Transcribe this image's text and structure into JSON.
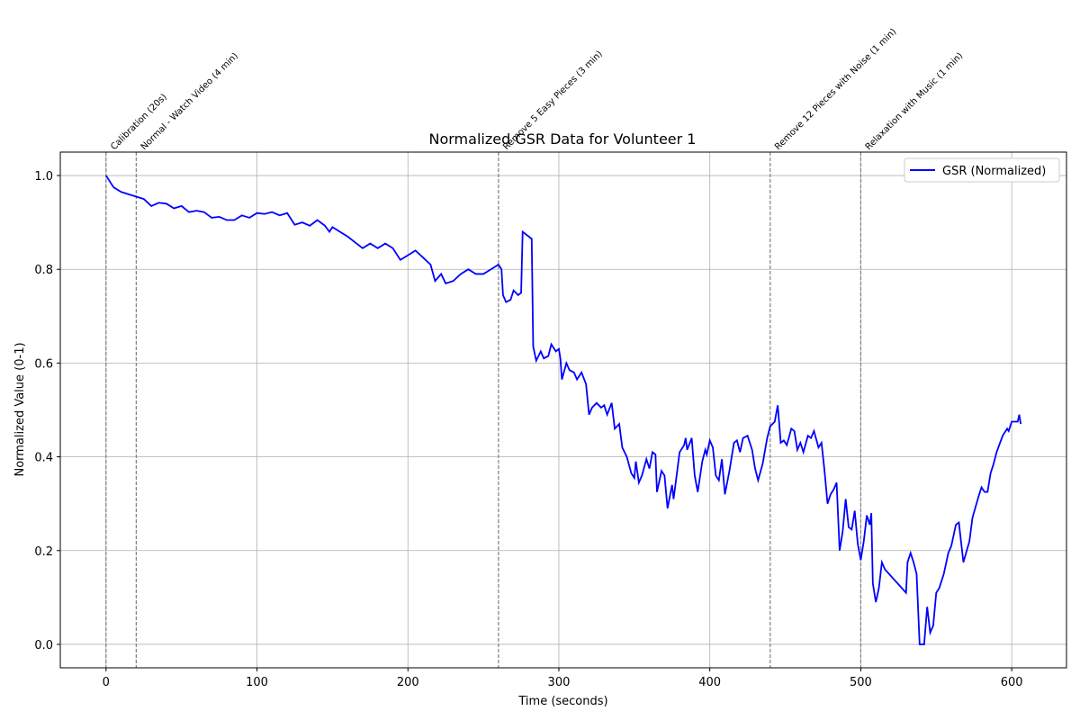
{
  "chart_data": {
    "type": "line",
    "title": "Normalized GSR Data for Volunteer 1",
    "xlabel": "Time (seconds)",
    "ylabel": "Normalized Value (0-1)",
    "xlim": [
      -30.3,
      636.3
    ],
    "ylim": [
      -0.05,
      1.05
    ],
    "xticks": [
      0,
      100,
      200,
      300,
      400,
      500,
      600
    ],
    "yticks": [
      {
        "value": 0,
        "label": "0.0"
      },
      0.2,
      0.4,
      0.6,
      0.8,
      {
        "value": 1,
        "label": "1.0"
      }
    ],
    "grid": true,
    "legend": "upper right",
    "annotations": [
      {
        "x": 0,
        "text": "Calibration (20s)"
      },
      {
        "x": 20,
        "text": "Normal - Watch Video (4 min)"
      },
      {
        "x": 260,
        "text": "Remove 5 Easy Pieces (3 min)"
      },
      {
        "x": 440,
        "text": "Remove 12 Pieces with Noise (1 min)"
      },
      {
        "x": 500,
        "text": "Relaxation with Music (1 min)"
      }
    ],
    "x": [
      0,
      5,
      10,
      15,
      20,
      25,
      30,
      35,
      40,
      45,
      50,
      55,
      60,
      65,
      70,
      75,
      80,
      85,
      90,
      95,
      100,
      105,
      110,
      115,
      120,
      125,
      130,
      135,
      140,
      145,
      148,
      150,
      160,
      170,
      175,
      180,
      185,
      190,
      195,
      200,
      205,
      210,
      215,
      218,
      222,
      225,
      230,
      235,
      240,
      245,
      250,
      255,
      260,
      262,
      263,
      265,
      268,
      270,
      273,
      275,
      276,
      280,
      282,
      283,
      285,
      288,
      290,
      293,
      295,
      298,
      300,
      301,
      302,
      305,
      307,
      310,
      312,
      315,
      318,
      320,
      322,
      325,
      328,
      330,
      332,
      335,
      337,
      340,
      342,
      345,
      348,
      350,
      351,
      353,
      355,
      358,
      360,
      362,
      364,
      365,
      368,
      370,
      372,
      375,
      376,
      380,
      383,
      384,
      385,
      388,
      390,
      392,
      395,
      397,
      398,
      400,
      402,
      404,
      406,
      408,
      410,
      413,
      416,
      418,
      420,
      422,
      425,
      428,
      430,
      432,
      435,
      438,
      440,
      443,
      445,
      447,
      449,
      451,
      454,
      456,
      458,
      460,
      462,
      465,
      467,
      469,
      472,
      474,
      476,
      478,
      480,
      482,
      484,
      486,
      488,
      490,
      492,
      494,
      496,
      498,
      500,
      502,
      504,
      506,
      507,
      508,
      510,
      512,
      514,
      516,
      530,
      531,
      533,
      535,
      537,
      539,
      542,
      544,
      546,
      548,
      550,
      552,
      555,
      558,
      560,
      563,
      565,
      568,
      572,
      574,
      578,
      580,
      582,
      584,
      586,
      588,
      590,
      594,
      597,
      598,
      600,
      604,
      605,
      606
    ],
    "series": [
      {
        "name": "GSR (Normalized)",
        "color": "#0000ff",
        "values": [
          1.0,
          0.975,
          0.965,
          0.96,
          0.955,
          0.95,
          0.935,
          0.942,
          0.94,
          0.93,
          0.935,
          0.922,
          0.925,
          0.922,
          0.91,
          0.912,
          0.905,
          0.905,
          0.915,
          0.91,
          0.92,
          0.918,
          0.922,
          0.915,
          0.92,
          0.895,
          0.9,
          0.893,
          0.905,
          0.893,
          0.88,
          0.89,
          0.87,
          0.845,
          0.855,
          0.845,
          0.855,
          0.845,
          0.82,
          0.83,
          0.84,
          0.825,
          0.81,
          0.775,
          0.79,
          0.77,
          0.775,
          0.79,
          0.8,
          0.79,
          0.79,
          0.8,
          0.81,
          0.8,
          0.745,
          0.73,
          0.735,
          0.755,
          0.745,
          0.75,
          0.88,
          0.87,
          0.865,
          0.635,
          0.605,
          0.625,
          0.61,
          0.615,
          0.64,
          0.625,
          0.63,
          0.61,
          0.565,
          0.6,
          0.585,
          0.58,
          0.565,
          0.58,
          0.555,
          0.49,
          0.505,
          0.515,
          0.505,
          0.51,
          0.49,
          0.515,
          0.46,
          0.47,
          0.42,
          0.4,
          0.365,
          0.355,
          0.39,
          0.345,
          0.36,
          0.395,
          0.375,
          0.41,
          0.405,
          0.325,
          0.37,
          0.36,
          0.29,
          0.34,
          0.31,
          0.41,
          0.425,
          0.44,
          0.415,
          0.44,
          0.36,
          0.325,
          0.39,
          0.415,
          0.405,
          0.435,
          0.42,
          0.36,
          0.35,
          0.395,
          0.32,
          0.37,
          0.43,
          0.435,
          0.41,
          0.44,
          0.445,
          0.415,
          0.375,
          0.35,
          0.385,
          0.44,
          0.465,
          0.475,
          0.51,
          0.43,
          0.435,
          0.425,
          0.46,
          0.455,
          0.415,
          0.43,
          0.41,
          0.445,
          0.44,
          0.455,
          0.42,
          0.43,
          0.37,
          0.3,
          0.32,
          0.33,
          0.345,
          0.2,
          0.24,
          0.31,
          0.25,
          0.245,
          0.285,
          0.215,
          0.18,
          0.22,
          0.275,
          0.255,
          0.28,
          0.13,
          0.09,
          0.12,
          0.175,
          0.16,
          0.11,
          0.175,
          0.195,
          0.175,
          0.15,
          0.0,
          0.0,
          0.08,
          0.025,
          0.04,
          0.11,
          0.12,
          0.15,
          0.195,
          0.21,
          0.255,
          0.26,
          0.175,
          0.22,
          0.27,
          0.315,
          0.335,
          0.325,
          0.325,
          0.365,
          0.385,
          0.41,
          0.445,
          0.46,
          0.455,
          0.475,
          0.475,
          0.49,
          0.47
        ]
      }
    ]
  }
}
